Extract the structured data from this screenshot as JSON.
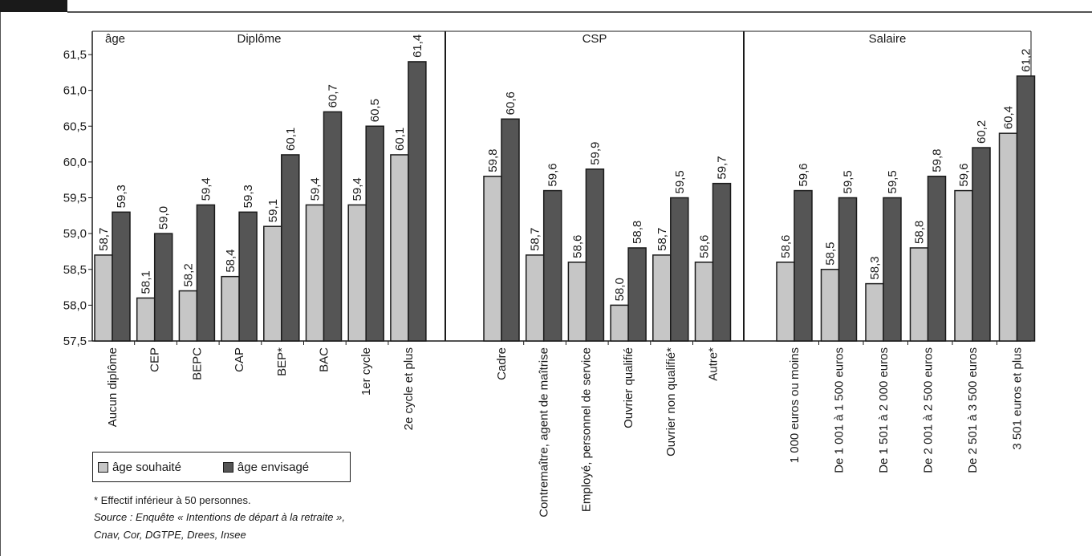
{
  "chart_data": {
    "type": "bar",
    "ylabel": "âge",
    "ylim": [
      57.5,
      61.5
    ],
    "yticks": [
      "57,5",
      "58,0",
      "58,5",
      "59,0",
      "59,5",
      "60,0",
      "60,5",
      "61,0",
      "61,5"
    ],
    "grid": false,
    "legend_position": "bottom-left",
    "series": [
      {
        "name": "âge souhaité",
        "color": "#c6c6c6"
      },
      {
        "name": "âge envisagé",
        "color": "#555555"
      }
    ],
    "groups": [
      {
        "title": "Diplôme",
        "categories": [
          "Aucun diplôme",
          "CEP",
          "BEPC",
          "CAP",
          "BEP*",
          "BAC",
          "1er cycle",
          "2e cycle et plus"
        ],
        "souhaite": [
          58.7,
          58.1,
          58.2,
          58.4,
          59.1,
          59.4,
          59.4,
          60.1
        ],
        "envisage": [
          59.3,
          59.0,
          59.4,
          59.3,
          60.1,
          60.7,
          60.5,
          61.4
        ]
      },
      {
        "title": "CSP",
        "categories": [
          "Cadre",
          "Contremaître, agent de maîtrise",
          "Employé, personnel de service",
          "Ouvrier qualifié",
          "Ouvrier non qualifié*",
          "Autre*"
        ],
        "souhaite": [
          59.8,
          58.7,
          58.6,
          58.0,
          58.7,
          58.6
        ],
        "envisage": [
          60.6,
          59.6,
          59.9,
          58.8,
          59.5,
          59.7
        ]
      },
      {
        "title": "Salaire",
        "categories": [
          "1 000 euros ou moins",
          "De 1 001 à 1 500 euros",
          "De 1 501 à 2 000 euros",
          "De 2 001 à 2 500 euros",
          "De 2 501 à 3 500 euros",
          "3 501 euros et plus"
        ],
        "souhaite": [
          58.6,
          58.5,
          58.3,
          58.8,
          59.6,
          60.4
        ],
        "envisage": [
          59.6,
          59.5,
          59.5,
          59.8,
          60.2,
          61.2
        ]
      }
    ],
    "notes": {
      "effectif": "* Effectif inférieur à 50 personnes.",
      "source_line1": "Source  : Enquête «  Intentions de départ à la retraite  »,",
      "source_line2": "Cnav, Cor, DGTPE, Drees, Insee"
    }
  }
}
